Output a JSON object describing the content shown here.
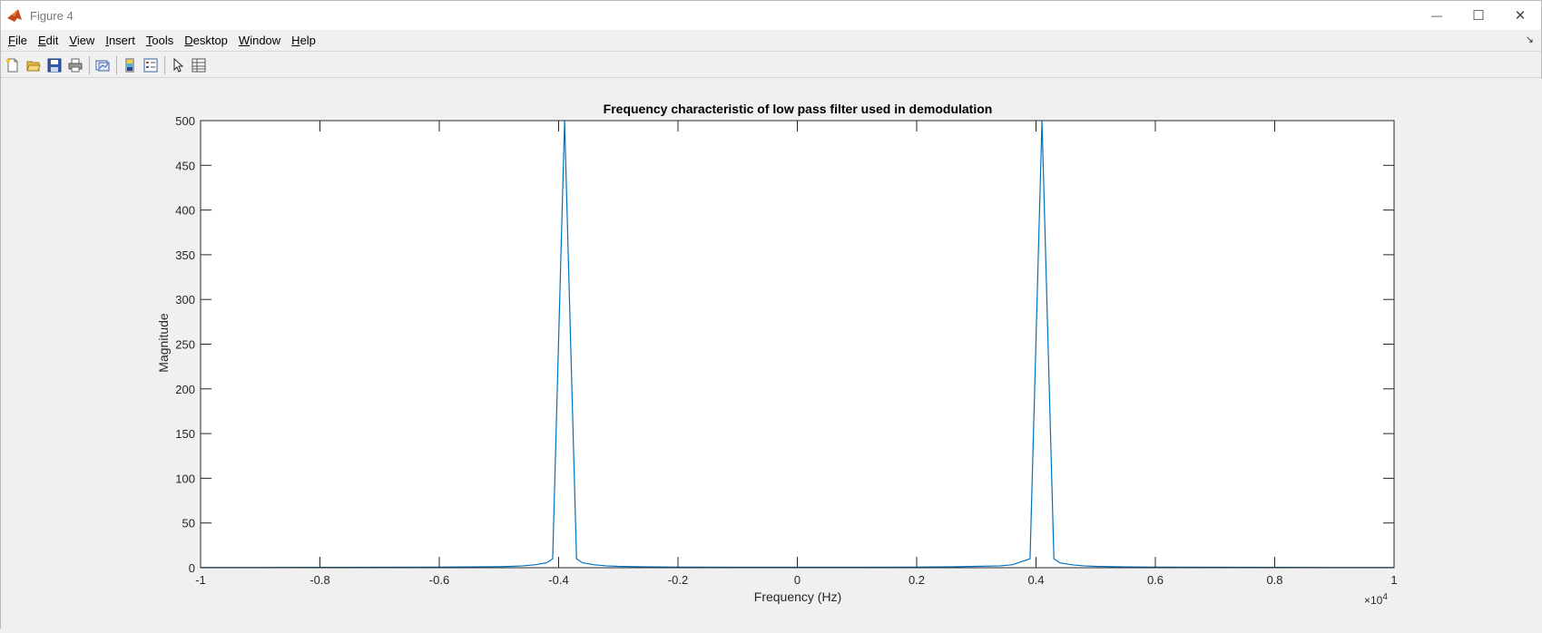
{
  "window": {
    "title": "Figure 4",
    "controls": {
      "minimize": "—",
      "maximize": "☐",
      "close": "✕"
    }
  },
  "menubar": {
    "items": [
      {
        "key": "F",
        "rest": "ile"
      },
      {
        "key": "E",
        "rest": "dit"
      },
      {
        "key": "V",
        "rest": "iew"
      },
      {
        "key": "I",
        "rest": "nsert"
      },
      {
        "key": "T",
        "rest": "ools"
      },
      {
        "key": "D",
        "rest": "esktop"
      },
      {
        "key": "W",
        "rest": "indow"
      },
      {
        "key": "H",
        "rest": "elp"
      }
    ]
  },
  "toolbar": {
    "buttons": [
      "new-figure-icon",
      "open-file-icon",
      "save-icon",
      "print-icon",
      "link-plot-icon",
      "colorbar-icon",
      "legend-icon",
      "pointer-icon",
      "property-inspector-icon"
    ]
  },
  "colors": {
    "line": "#0072bd",
    "axes": "#262626",
    "background": "#f0f0f0",
    "plot_bg": "#ffffff"
  },
  "chart_data": {
    "type": "line",
    "title": "Frequency characteristic of low pass filter used in demodulation",
    "xlabel": "Frequency (Hz)",
    "ylabel": "Magnitude",
    "xlim": [
      -1,
      1
    ],
    "ylim": [
      0,
      500
    ],
    "x_multiplier": "×10",
    "x_multiplier_exponent": "4",
    "xticks": [
      "-1",
      "-0.8",
      "-0.6",
      "-0.4",
      "-0.2",
      "0",
      "0.2",
      "0.4",
      "0.6",
      "0.8",
      "1"
    ],
    "yticks": [
      "0",
      "50",
      "100",
      "150",
      "200",
      "250",
      "300",
      "350",
      "400",
      "450",
      "500"
    ],
    "grid": false,
    "series": [
      {
        "x": [
          -1,
          -0.9,
          -0.8,
          -0.7,
          -0.6,
          -0.55,
          -0.5,
          -0.48,
          -0.46,
          -0.44,
          -0.42,
          -0.41,
          -0.39,
          -0.37,
          -0.36,
          -0.34,
          -0.32,
          -0.3,
          -0.26,
          -0.2,
          -0.1,
          0,
          0.1,
          0.2,
          0.26,
          0.3,
          0.34,
          0.36,
          0.37,
          0.39,
          0.41,
          0.43,
          0.44,
          0.46,
          0.48,
          0.5,
          0.55,
          0.6,
          0.7,
          0.8,
          0.9,
          1
        ],
        "y": [
          0.3,
          0.3,
          0.4,
          0.5,
          0.7,
          0.9,
          1.2,
          1.5,
          2.1,
          3.2,
          5.5,
          10,
          500,
          10,
          5.5,
          3.2,
          2.1,
          1.5,
          1.0,
          0.7,
          0.5,
          0.5,
          0.5,
          0.7,
          1.0,
          1.5,
          2.1,
          3.2,
          5.5,
          10,
          500,
          10,
          5.5,
          3.2,
          2.1,
          1.5,
          0.9,
          0.7,
          0.5,
          0.4,
          0.3,
          0.3
        ]
      }
    ]
  }
}
